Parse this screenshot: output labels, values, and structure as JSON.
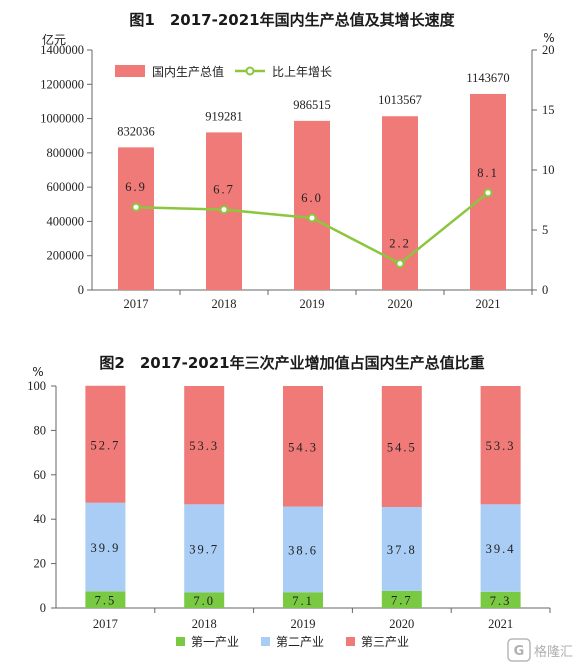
{
  "chart_data": [
    {
      "type": "bar+line",
      "title": "图1　2017-2021年国内生产总值及其增长速度",
      "left_unit": "亿元",
      "right_unit": "%",
      "categories": [
        "2017",
        "2018",
        "2019",
        "2020",
        "2021"
      ],
      "series": [
        {
          "name": "国内生产总值",
          "type": "bar",
          "axis": "left",
          "color": "#f07a78",
          "values": [
            832036,
            919281,
            986515,
            1013567,
            1143670
          ],
          "labels": [
            "832036",
            "919281",
            "986515",
            "1013567",
            "1143670"
          ]
        },
        {
          "name": "比上年增长",
          "type": "line",
          "axis": "right",
          "color": "#8cc63f",
          "values": [
            6.9,
            6.7,
            6.0,
            2.2,
            8.1
          ],
          "labels": [
            "6.9",
            "6.7",
            "6.0",
            "2.2",
            "8.1"
          ]
        }
      ],
      "ylim_left": [
        0,
        1400000
      ],
      "yticks_left": [
        "0",
        "200000",
        "400000",
        "600000",
        "800000",
        "1000000",
        "1200000",
        "1400000"
      ],
      "ylim_right": [
        0,
        20
      ],
      "yticks_right": [
        "0",
        "5",
        "10",
        "15",
        "20"
      ],
      "legend_position": "top-left"
    },
    {
      "type": "stacked-bar",
      "title": "图2　2017-2021年三次产业增加值占国内生产总值比重",
      "y_unit": "%",
      "categories": [
        "2017",
        "2018",
        "2019",
        "2020",
        "2021"
      ],
      "series": [
        {
          "name": "第一产业",
          "color": "#7ac943",
          "values": [
            7.5,
            7.0,
            7.1,
            7.7,
            7.3
          ],
          "labels": [
            "7.5",
            "7.0",
            "7.1",
            "7.7",
            "7.3"
          ]
        },
        {
          "name": "第二产业",
          "color": "#a9cdf5",
          "values": [
            39.9,
            39.7,
            38.6,
            37.8,
            39.4
          ],
          "labels": [
            "39.9",
            "39.7",
            "38.6",
            "37.8",
            "39.4"
          ]
        },
        {
          "name": "第三产业",
          "color": "#f07a78",
          "values": [
            52.7,
            53.3,
            54.3,
            54.5,
            53.3
          ],
          "labels": [
            "52.7",
            "53.3",
            "54.3",
            "54.5",
            "53.3"
          ]
        }
      ],
      "ylim": [
        0,
        100
      ],
      "yticks": [
        "0",
        "20",
        "40",
        "60",
        "80",
        "100"
      ],
      "legend_position": "bottom"
    }
  ],
  "watermark": "格隆汇"
}
